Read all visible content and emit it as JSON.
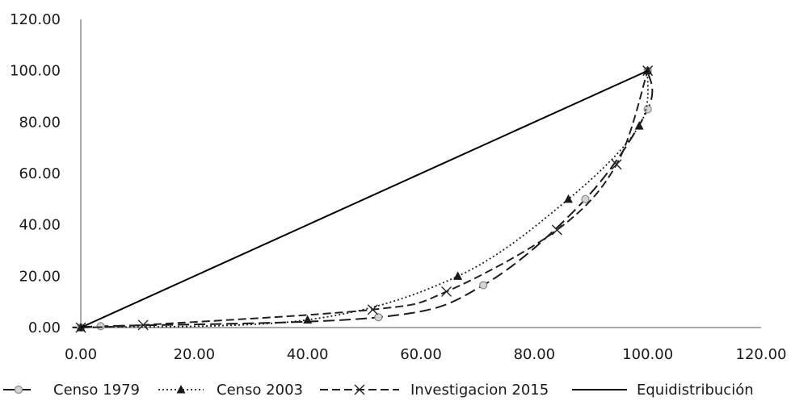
{
  "chart_data": {
    "type": "line",
    "title": "",
    "xlabel": "",
    "ylabel": "",
    "xlim": [
      0,
      120
    ],
    "ylim": [
      0,
      120
    ],
    "x_ticks": [
      "0.00",
      "20.00",
      "40.00",
      "60.00",
      "80.00",
      "100.00",
      "120.00"
    ],
    "y_ticks": [
      "0.00",
      "20.00",
      "40.00",
      "60.00",
      "80.00",
      "100.00",
      "120.00"
    ],
    "grid": false,
    "legend_position": "bottom",
    "series": [
      {
        "name": "Censo 1979",
        "style": "dashed",
        "marker": "circle",
        "color": "#9a9a9a",
        "points": [
          [
            0,
            0
          ],
          [
            3.5,
            0.5
          ],
          [
            52.5,
            4
          ],
          [
            71,
            16.5
          ],
          [
            89,
            50
          ],
          [
            100,
            85
          ],
          [
            100,
            100
          ]
        ]
      },
      {
        "name": "Censo 2003",
        "style": "dotted",
        "marker": "triangle",
        "color": "#222222",
        "points": [
          [
            0,
            0
          ],
          [
            40,
            3
          ],
          [
            66.5,
            20
          ],
          [
            86,
            50
          ],
          [
            98.5,
            78.5
          ],
          [
            100,
            100
          ]
        ]
      },
      {
        "name": "Investigacion 2015",
        "style": "dashed-x",
        "marker": "x",
        "color": "#222222",
        "points": [
          [
            0,
            0
          ],
          [
            11,
            1
          ],
          [
            51.5,
            7
          ],
          [
            64.5,
            14
          ],
          [
            84,
            38
          ],
          [
            94.5,
            63.5
          ],
          [
            100,
            100
          ]
        ]
      },
      {
        "name": "Equidistribución",
        "style": "solid",
        "marker": "none",
        "color": "#000000",
        "points": [
          [
            0,
            0
          ],
          [
            100,
            100
          ]
        ]
      }
    ]
  }
}
